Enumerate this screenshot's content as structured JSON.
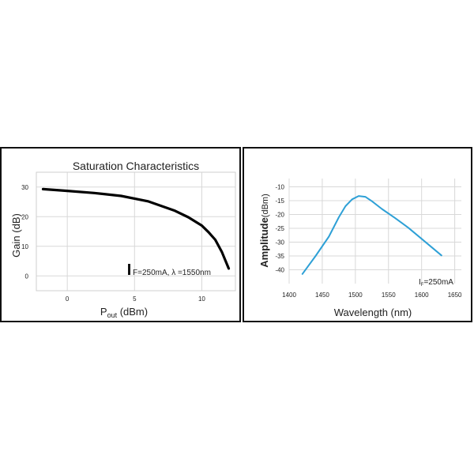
{
  "chart_data": [
    {
      "type": "line",
      "title": "Saturation Characteristics",
      "xlabel": "P",
      "xlabel_sub": "out",
      "xlabel_unit": "(dBm)",
      "ylabel": "Gain (dB)",
      "xlim": [
        -2.3,
        12.5
      ],
      "ylim": [
        -5,
        35
      ],
      "x_ticks": [
        "0",
        "5",
        "10"
      ],
      "x_tick_values": [
        0,
        5,
        10
      ],
      "y_ticks": [
        "30",
        "20",
        "10",
        "0"
      ],
      "y_tick_values": [
        30,
        20,
        10,
        0
      ],
      "grid": true,
      "annotation": "F=250mA,  λ =1550nm",
      "series": [
        {
          "color": "#000000",
          "x": [
            -1.8,
            0,
            2,
            4,
            6,
            8,
            9,
            10,
            10.5,
            11,
            11.5,
            12
          ],
          "y": [
            29.3,
            28.7,
            28.0,
            27.0,
            25.2,
            22.0,
            19.8,
            17.0,
            14.8,
            12.2,
            8.0,
            2.5
          ]
        }
      ]
    },
    {
      "type": "line",
      "title": "",
      "xlabel": "Wavelength (nm)",
      "ylabel": "Amplitude",
      "ylabel_unit": "(dBm)",
      "xlim": [
        1400,
        1660
      ],
      "ylim": [
        -45,
        -7
      ],
      "x_ticks": [
        "1400",
        "1450",
        "1500",
        "1550",
        "1600",
        "1650"
      ],
      "x_tick_values": [
        1400,
        1450,
        1500,
        1550,
        1600,
        1650
      ],
      "y_ticks": [
        "-10",
        "-15",
        "-20",
        "-25",
        "-30",
        "-35",
        "-40"
      ],
      "y_tick_values": [
        -10,
        -15,
        -20,
        -25,
        -30,
        -35,
        -40
      ],
      "grid": true,
      "annotation_main": "I",
      "annotation_sub": "F",
      "annotation_rest": "=250mA",
      "series": [
        {
          "color": "#2ea0d6",
          "x": [
            1420,
            1440,
            1460,
            1475,
            1485,
            1495,
            1505,
            1515,
            1525,
            1540,
            1560,
            1580,
            1600,
            1630
          ],
          "y": [
            -41.5,
            -35.0,
            -28.0,
            -21.0,
            -17.0,
            -14.5,
            -13.3,
            -13.6,
            -15.2,
            -18.0,
            -21.3,
            -24.8,
            -28.8,
            -34.8
          ]
        }
      ]
    }
  ]
}
